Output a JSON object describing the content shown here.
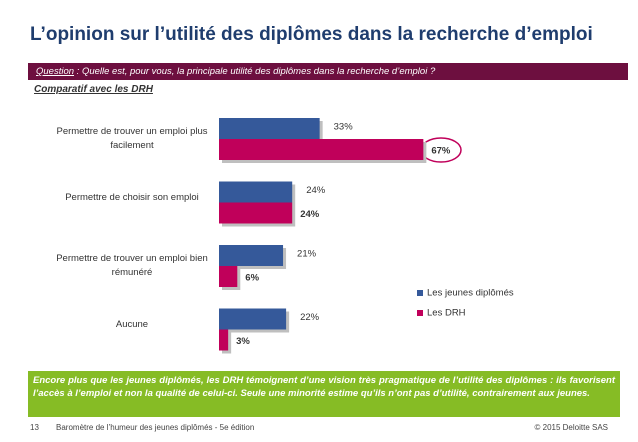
{
  "header": {
    "title": "L’opinion sur l’utilité des diplômes dans la recherche d’emploi"
  },
  "question": {
    "label": "Question",
    "text": ": Quelle est, pour vous, la principale utilité des diplômes dans la recherche d’emploi ?"
  },
  "subtitle": "Comparatif avec les DRH",
  "chart_data": {
    "type": "bar",
    "orientation": "horizontal",
    "categories": [
      "Permettre de trouver un emploi plus facilement",
      "Permettre de choisir son emploi",
      "Permettre de trouver un emploi bien rémunéré",
      "Aucune"
    ],
    "series": [
      {
        "name": "Les jeunes diplômés",
        "color": "#35599a",
        "values": [
          33,
          24,
          21,
          22
        ],
        "value_labels": [
          "33%",
          "24%",
          "21%",
          "22%"
        ]
      },
      {
        "name": "Les DRH",
        "color": "#c0005a",
        "values": [
          67,
          24,
          6,
          3
        ],
        "value_labels": [
          "67%",
          "24%",
          "6%",
          "3%"
        ]
      }
    ],
    "legend": "right"
  },
  "conclusion": "Encore plus que les jeunes diplômés, les DRH témoignent d’une vision très pragmatique de l’utilité des diplômes : ils favorisent l’accès à l’emploi et non la qualité de celui-ci. Seule une minorité estime qu’ils n’ont pas d’utilité, contrairement aux jeunes.",
  "footer": {
    "page": "13",
    "text": "Baromètre de l’humeur des jeunes diplômés - 5e édition",
    "copyright": "© 2015 Deloitte SAS"
  }
}
